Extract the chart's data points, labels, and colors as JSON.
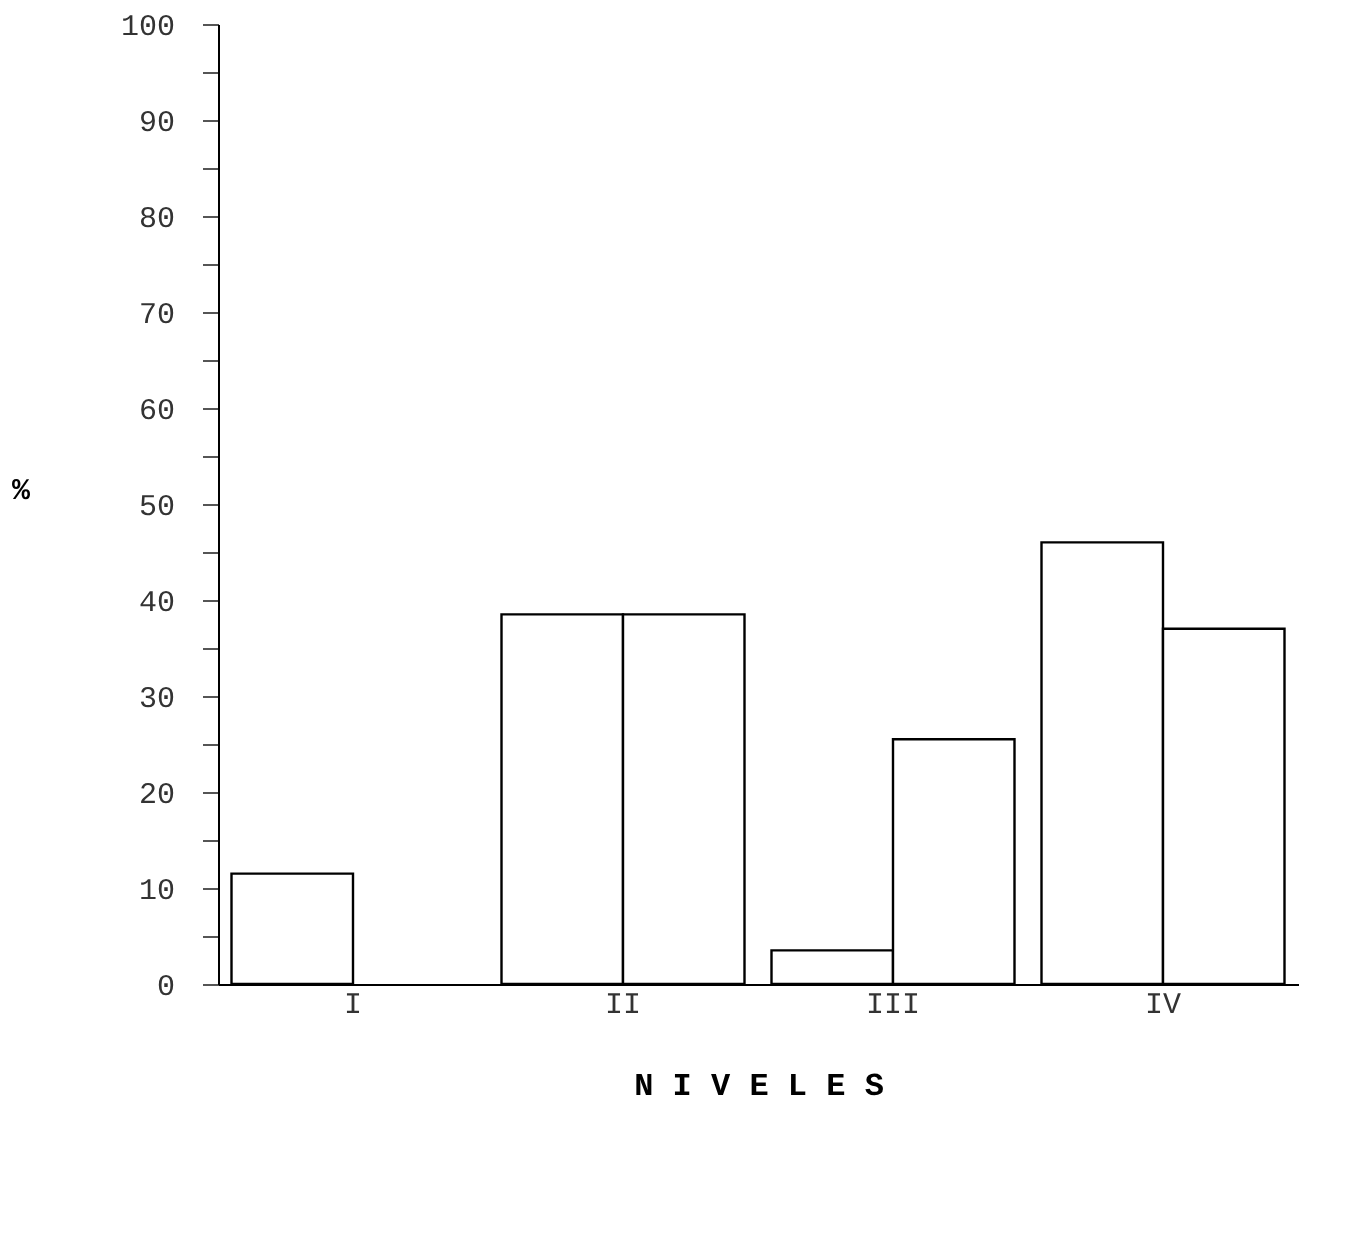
{
  "chart_data": {
    "type": "bar",
    "xlabel": "N I V E L E S",
    "ylabel": "%",
    "categories": [
      "I",
      "II",
      "III",
      "IV"
    ],
    "series": [
      {
        "color": "#ffffff",
        "values": [
          11.5,
          38.5,
          3.5,
          46
        ]
      },
      {
        "color": "#ffffff",
        "values": [
          null,
          38.5,
          25.5,
          37
        ]
      }
    ],
    "ylim": [
      0,
      100
    ],
    "yticks": [
      0,
      {
        "value": 5,
        "label": null
      },
      10,
      {
        "value": 15,
        "label": null
      },
      20,
      {
        "value": 25,
        "label": null
      },
      30,
      {
        "value": 35,
        "label": null
      },
      40,
      {
        "value": 45,
        "label": null
      },
      50,
      {
        "value": 55,
        "label": null
      },
      60,
      {
        "value": 65,
        "label": null
      },
      70,
      {
        "value": 75,
        "label": null
      },
      80,
      {
        "value": 85,
        "label": null
      },
      90,
      {
        "value": 95,
        "label": null
      },
      100
    ],
    "grid": false,
    "legend": false
  }
}
